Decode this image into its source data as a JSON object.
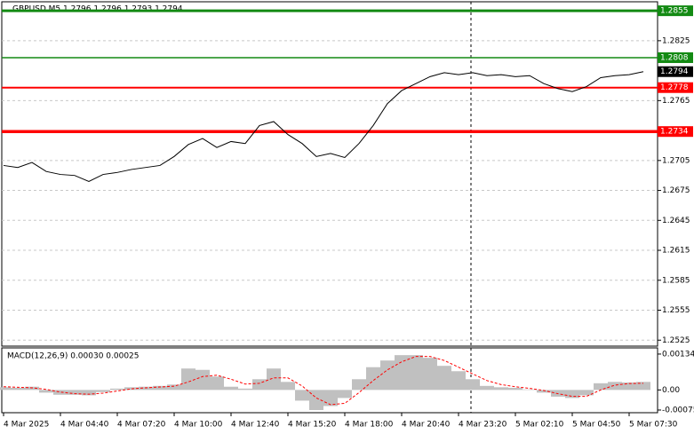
{
  "chart_data": [
    {
      "type": "price",
      "title": "GBPUSD,M5 1.2796 1.2796 1.2793 1.2794",
      "categories": [
        "4 Mar 2025",
        null,
        null,
        null,
        "4 Mar 04:40",
        null,
        null,
        null,
        "4 Mar 07:20",
        null,
        null,
        null,
        "4 Mar 10:00",
        null,
        null,
        null,
        "4 Mar 12:40",
        null,
        null,
        null,
        "4 Mar 15:20",
        null,
        null,
        null,
        "4 Mar 18:00",
        null,
        null,
        null,
        "4 Mar 20:40",
        null,
        null,
        null,
        "4 Mar 23:20",
        null,
        null,
        null,
        "5 Mar 02:10",
        null,
        null,
        null,
        "5 Mar 04:50",
        null,
        null,
        null,
        "5 Mar 07:30",
        null
      ],
      "values": [
        1.27,
        1.2698,
        1.2703,
        1.2694,
        1.2691,
        1.269,
        1.2684,
        1.2691,
        1.2693,
        1.2696,
        1.2698,
        1.27,
        1.2709,
        1.2721,
        1.2727,
        1.2718,
        1.2724,
        1.2722,
        1.274,
        1.2744,
        1.2731,
        1.2722,
        1.2709,
        1.2712,
        1.2708,
        1.2722,
        1.274,
        1.2762,
        1.2775,
        1.2782,
        1.2789,
        1.2793,
        1.2791,
        1.2793,
        1.279,
        1.2791,
        1.2789,
        1.279,
        1.2782,
        1.2777,
        1.2774,
        1.2779,
        1.2788,
        1.279,
        1.2791,
        1.2794
      ],
      "color": "#000000",
      "ylim": [
        1.2519,
        1.2864
      ],
      "yticks": [
        1.2825,
        1.2765,
        1.2705,
        1.2675,
        1.2645,
        1.2615,
        1.2585,
        1.2555,
        1.2525
      ],
      "grid": true,
      "levels": [
        {
          "value": 1.2855,
          "color": "#138a13",
          "width": 3
        },
        {
          "value": 1.2808,
          "color": "#138a13",
          "width": 1.5
        },
        {
          "value": 1.2778,
          "color": "#ff0000",
          "width": 2
        },
        {
          "value": 1.2734,
          "color": "#ff0000",
          "width": 3.5
        }
      ],
      "last": 1.2794
    },
    {
      "type": "macd",
      "title": "MACD(12,26,9) 0.00030 0.00025",
      "histogram": [
        0.0001,
        8e-05,
        0.00012,
        -0.0001,
        -0.00018,
        -0.00018,
        -0.0002,
        -8e-05,
        5e-05,
        0.0001,
        0.00012,
        0.00015,
        0.0002,
        0.0008,
        0.00075,
        0.0005,
        0.00012,
        5e-05,
        0.0004,
        0.0008,
        0.0003,
        -0.0004,
        -0.00075,
        -0.0006,
        -0.0003,
        0.0004,
        0.00085,
        0.0011,
        0.0013,
        0.0013,
        0.0012,
        0.0009,
        0.0007,
        0.0004,
        0.00015,
        0.0001,
        8e-05,
        2e-05,
        -0.0001,
        -0.00025,
        -0.0003,
        -0.0002,
        0.00025,
        0.0003,
        0.00028,
        0.0003
      ],
      "signal": [
        0.00012,
        0.0001,
        8e-05,
        2e-05,
        -8e-05,
        -0.00014,
        -0.00016,
        -0.00012,
        -4e-05,
        4e-05,
        8e-05,
        0.00011,
        0.00014,
        0.0003,
        0.0005,
        0.00055,
        0.0004,
        0.00022,
        0.00025,
        0.00045,
        0.00045,
        0.00015,
        -0.0003,
        -0.00055,
        -0.0005,
        -0.0001,
        0.00035,
        0.00075,
        0.00105,
        0.00125,
        0.00125,
        0.0011,
        0.00085,
        0.0006,
        0.00035,
        0.0002,
        0.00012,
        6e-05,
        -2e-05,
        -0.00014,
        -0.00024,
        -0.00024,
        0.0,
        0.00018,
        0.00024,
        0.00025
      ],
      "histogram_color": "#c0c0c0",
      "signal_color": "#ff0000",
      "ylim": [
        -0.00085,
        0.00157
      ],
      "yticks": [
        0.00134,
        {
          "value": 0,
          "label": "0.00"
        },
        -0.00075
      ]
    }
  ]
}
